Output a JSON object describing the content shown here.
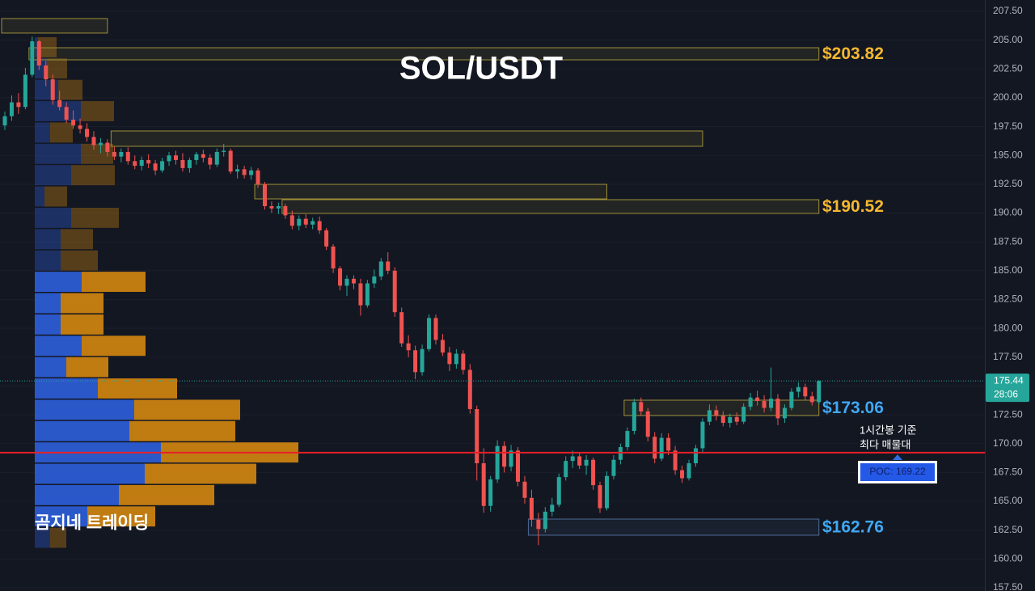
{
  "chart_data": {
    "type": "candlestick",
    "title": "SOL/USDT",
    "watermark": "곰지네 트레이딩",
    "ylim": [
      157.22,
      208.48
    ],
    "yticks": [
      {
        "value": 157.5,
        "label": "157.50"
      },
      {
        "value": 160,
        "label": "160.00"
      },
      {
        "value": 162.5,
        "label": "162.50"
      },
      {
        "value": 165,
        "label": "165.00"
      },
      {
        "value": 167.5,
        "label": "167.50"
      },
      {
        "value": 170,
        "label": "170.00"
      },
      {
        "value": 172.5,
        "label": "172.50"
      },
      {
        "value": 175,
        "label": "175.00"
      },
      {
        "value": 177.5,
        "label": "177.50"
      },
      {
        "value": 180,
        "label": "180.00"
      },
      {
        "value": 182.5,
        "label": "182.50"
      },
      {
        "value": 185,
        "label": "185.00"
      },
      {
        "value": 187.5,
        "label": "187.50"
      },
      {
        "value": 190,
        "label": "190.00"
      },
      {
        "value": 192.5,
        "label": "192.50"
      },
      {
        "value": 195,
        "label": "195.00"
      },
      {
        "value": 197.5,
        "label": "197.50"
      },
      {
        "value": 200,
        "label": "200.00"
      },
      {
        "value": 202.5,
        "label": "202.50"
      },
      {
        "value": 205,
        "label": "205.00"
      },
      {
        "value": 207.5,
        "label": "207.50"
      }
    ],
    "grid": true,
    "up_color": "#26a69a",
    "down_color": "#ef5350",
    "ohlc": [
      [
        197.6,
        198.8,
        197.2,
        198.4
      ],
      [
        198.4,
        200.2,
        198.0,
        199.6
      ],
      [
        199.6,
        200.4,
        198.6,
        199.2
      ],
      [
        199.2,
        202.6,
        199.0,
        202.0
      ],
      [
        202.0,
        205.3,
        201.8,
        204.9
      ],
      [
        204.9,
        205.0,
        202.4,
        202.8
      ],
      [
        202.8,
        203.2,
        201.0,
        201.6
      ],
      [
        201.6,
        202.0,
        199.4,
        199.8
      ],
      [
        199.8,
        200.6,
        198.9,
        199.2
      ],
      [
        199.2,
        199.6,
        197.8,
        198.1
      ],
      [
        198.1,
        198.9,
        197.3,
        197.6
      ],
      [
        197.6,
        198.2,
        196.9,
        197.3
      ],
      [
        197.3,
        197.8,
        196.2,
        196.6
      ],
      [
        196.6,
        197.1,
        195.5,
        195.9
      ],
      [
        195.9,
        196.5,
        195.2,
        196.1
      ],
      [
        196.1,
        196.4,
        194.9,
        195.3
      ],
      [
        195.3,
        195.8,
        194.6,
        194.9
      ],
      [
        194.9,
        195.6,
        194.4,
        195.3
      ],
      [
        195.3,
        195.7,
        194.2,
        194.5
      ],
      [
        194.5,
        195.0,
        193.8,
        194.1
      ],
      [
        194.1,
        194.9,
        193.7,
        194.6
      ],
      [
        194.6,
        195.1,
        193.9,
        194.3
      ],
      [
        194.3,
        194.6,
        193.3,
        193.7
      ],
      [
        193.7,
        194.8,
        193.5,
        194.5
      ],
      [
        194.5,
        195.3,
        194.1,
        195.0
      ],
      [
        195.0,
        195.4,
        194.2,
        194.6
      ],
      [
        194.6,
        195.2,
        193.6,
        193.9
      ],
      [
        193.9,
        194.8,
        193.5,
        194.6
      ],
      [
        194.6,
        195.3,
        194.2,
        195.1
      ],
      [
        195.1,
        195.5,
        194.4,
        194.8
      ],
      [
        194.8,
        195.1,
        193.8,
        194.2
      ],
      [
        194.2,
        195.6,
        194.0,
        195.3
      ],
      [
        195.3,
        196.0,
        194.9,
        195.4
      ],
      [
        195.4,
        195.6,
        193.4,
        193.6
      ],
      [
        193.6,
        194.2,
        193.0,
        193.8
      ],
      [
        193.8,
        194.1,
        193.0,
        193.3
      ],
      [
        193.3,
        194.0,
        192.9,
        193.7
      ],
      [
        193.7,
        193.9,
        192.2,
        192.5
      ],
      [
        192.5,
        192.7,
        190.3,
        190.6
      ],
      [
        190.6,
        191.0,
        190.0,
        190.4
      ],
      [
        190.4,
        190.9,
        189.9,
        190.6
      ],
      [
        190.6,
        190.8,
        189.5,
        189.8
      ],
      [
        189.8,
        190.2,
        188.6,
        188.9
      ],
      [
        188.9,
        189.8,
        188.5,
        189.5
      ],
      [
        189.5,
        189.9,
        188.7,
        189.0
      ],
      [
        189.0,
        189.6,
        188.6,
        189.3
      ],
      [
        189.3,
        189.7,
        188.2,
        188.5
      ],
      [
        188.5,
        188.7,
        186.8,
        187.1
      ],
      [
        187.1,
        187.3,
        184.8,
        185.2
      ],
      [
        185.2,
        185.4,
        183.3,
        183.7
      ],
      [
        183.7,
        184.6,
        182.8,
        184.3
      ],
      [
        184.3,
        184.6,
        183.4,
        183.9
      ],
      [
        183.9,
        184.3,
        181.1,
        182.0
      ],
      [
        182.0,
        184.2,
        181.8,
        183.9
      ],
      [
        183.9,
        185.1,
        183.5,
        184.5
      ],
      [
        184.5,
        186.1,
        184.2,
        185.8
      ],
      [
        185.8,
        186.6,
        184.7,
        185.0
      ],
      [
        185.0,
        185.3,
        181.0,
        181.4
      ],
      [
        181.4,
        181.8,
        178.4,
        178.7
      ],
      [
        178.7,
        179.4,
        177.5,
        178.1
      ],
      [
        178.1,
        178.5,
        175.6,
        176.2
      ],
      [
        176.2,
        178.6,
        175.9,
        178.2
      ],
      [
        178.2,
        181.2,
        178.0,
        180.9
      ],
      [
        180.9,
        181.2,
        178.6,
        179.0
      ],
      [
        179.0,
        179.5,
        177.6,
        177.9
      ],
      [
        177.9,
        178.4,
        176.3,
        176.9
      ],
      [
        176.9,
        178.2,
        176.5,
        177.8
      ],
      [
        177.8,
        178.1,
        176.0,
        176.4
      ],
      [
        176.4,
        176.9,
        172.6,
        173.0
      ],
      [
        173.0,
        173.3,
        166.8,
        168.3
      ],
      [
        168.3,
        169.6,
        164.0,
        164.6
      ],
      [
        164.6,
        167.2,
        164.1,
        166.9
      ],
      [
        166.9,
        170.3,
        166.6,
        169.8
      ],
      [
        169.8,
        170.2,
        167.5,
        168.0
      ],
      [
        168.0,
        169.9,
        167.6,
        169.4
      ],
      [
        169.4,
        169.7,
        166.3,
        166.7
      ],
      [
        166.7,
        167.2,
        164.8,
        165.3
      ],
      [
        165.3,
        166.0,
        162.8,
        163.4
      ],
      [
        163.4,
        164.0,
        161.2,
        162.6
      ],
      [
        162.6,
        164.5,
        162.3,
        164.1
      ],
      [
        164.1,
        165.3,
        163.7,
        164.7
      ],
      [
        164.7,
        167.4,
        164.5,
        167.1
      ],
      [
        167.1,
        168.9,
        166.8,
        168.5
      ],
      [
        168.5,
        169.4,
        167.9,
        168.9
      ],
      [
        168.9,
        169.2,
        167.8,
        168.1
      ],
      [
        168.1,
        169.0,
        167.3,
        168.6
      ],
      [
        168.6,
        168.8,
        166.0,
        166.4
      ],
      [
        166.4,
        166.7,
        164.0,
        164.4
      ],
      [
        164.4,
        167.6,
        164.2,
        167.2
      ],
      [
        167.2,
        169.0,
        166.9,
        168.6
      ],
      [
        168.6,
        170.0,
        168.2,
        169.7
      ],
      [
        169.7,
        171.4,
        169.4,
        171.1
      ],
      [
        171.1,
        173.9,
        170.8,
        173.6
      ],
      [
        173.6,
        174.0,
        172.4,
        172.8
      ],
      [
        172.8,
        173.1,
        170.2,
        170.6
      ],
      [
        170.6,
        171.0,
        168.3,
        168.7
      ],
      [
        168.7,
        170.9,
        168.5,
        170.5
      ],
      [
        170.5,
        170.9,
        169.0,
        169.4
      ],
      [
        169.4,
        169.8,
        167.3,
        167.7
      ],
      [
        167.7,
        168.1,
        166.6,
        167.0
      ],
      [
        167.0,
        168.6,
        166.8,
        168.3
      ],
      [
        168.3,
        169.9,
        168.0,
        169.6
      ],
      [
        169.6,
        172.2,
        169.2,
        171.9
      ],
      [
        171.9,
        173.4,
        171.6,
        172.9
      ],
      [
        172.9,
        173.3,
        172.0,
        172.4
      ],
      [
        172.4,
        172.8,
        171.5,
        171.8
      ],
      [
        171.8,
        172.6,
        171.4,
        172.3
      ],
      [
        172.3,
        172.7,
        171.6,
        171.9
      ],
      [
        171.9,
        173.5,
        171.7,
        173.2
      ],
      [
        173.2,
        174.4,
        172.9,
        174.0
      ],
      [
        174.0,
        174.6,
        173.3,
        173.7
      ],
      [
        173.7,
        174.2,
        172.7,
        173.1
      ],
      [
        173.1,
        176.6,
        172.8,
        173.9
      ],
      [
        173.9,
        174.3,
        171.6,
        172.2
      ],
      [
        172.2,
        173.4,
        171.8,
        173.1
      ],
      [
        173.1,
        174.8,
        172.9,
        174.5
      ],
      [
        174.5,
        175.3,
        174.0,
        174.9
      ],
      [
        174.9,
        175.2,
        173.8,
        174.1
      ],
      [
        174.1,
        174.5,
        173.3,
        173.6
      ],
      [
        173.6,
        175.5,
        173.4,
        175.44
      ]
    ],
    "last_price": 175.44,
    "countdown": "28:06",
    "poc": {
      "value": 169.22,
      "label": "POC: 169.22",
      "color": "#e5202a"
    },
    "poc_note": [
      "1시간봉 기준",
      "최다 매물대"
    ],
    "zones": [
      {
        "top": 206.87,
        "bottom": 205.61,
        "from": 0,
        "to": 15,
        "color": "#9c8f3a"
      },
      {
        "top": 204.34,
        "bottom": 203.29,
        "from": 4,
        "to": 119,
        "color": "#9c8f3a",
        "label": "$203.82",
        "label_color": "#f5b82e"
      },
      {
        "top": 197.12,
        "bottom": 195.79,
        "from": 16,
        "to": 102,
        "color": "#9c8f3a"
      },
      {
        "top": 192.49,
        "bottom": 191.23,
        "from": 37,
        "to": 88,
        "color": "#9c8f3a"
      },
      {
        "top": 191.16,
        "bottom": 189.97,
        "from": 41,
        "to": 119,
        "color": "#9c8f3a",
        "label": "$190.52",
        "label_color": "#f5b82e"
      },
      {
        "top": 173.77,
        "bottom": 172.44,
        "from": 91,
        "to": 119,
        "color": "#9c8f3a",
        "label": "$173.06",
        "label_color": "#3fa9f5"
      },
      {
        "top": 163.46,
        "bottom": 162.06,
        "from": 77,
        "to": 119,
        "color": "#4d6a94",
        "label": "$162.76",
        "label_color": "#3fa9f5"
      }
    ],
    "volume_profile": {
      "bins": [
        160.93,
        162.78,
        164.63,
        166.48,
        168.33,
        170.18,
        172.03,
        173.88,
        175.73,
        177.58,
        179.43,
        181.28,
        183.13,
        184.98,
        186.83,
        188.68,
        190.53,
        192.38,
        194.23,
        196.08,
        197.93,
        199.78,
        201.63,
        203.48,
        205.33
      ],
      "buy": [
        19,
        65,
        104,
        136,
        156,
        117,
        123,
        78,
        39,
        58,
        32,
        32,
        58,
        32,
        32,
        45,
        12,
        45,
        57,
        19,
        57,
        29,
        15,
        4
      ],
      "sell": [
        20,
        84,
        118,
        138,
        170,
        131,
        131,
        98,
        52,
        79,
        53,
        53,
        79,
        46,
        40,
        59,
        28,
        54,
        40,
        28,
        41,
        30,
        25,
        23
      ],
      "buy_color": "#2d5fdc",
      "sell_color": "#d4860f"
    }
  }
}
